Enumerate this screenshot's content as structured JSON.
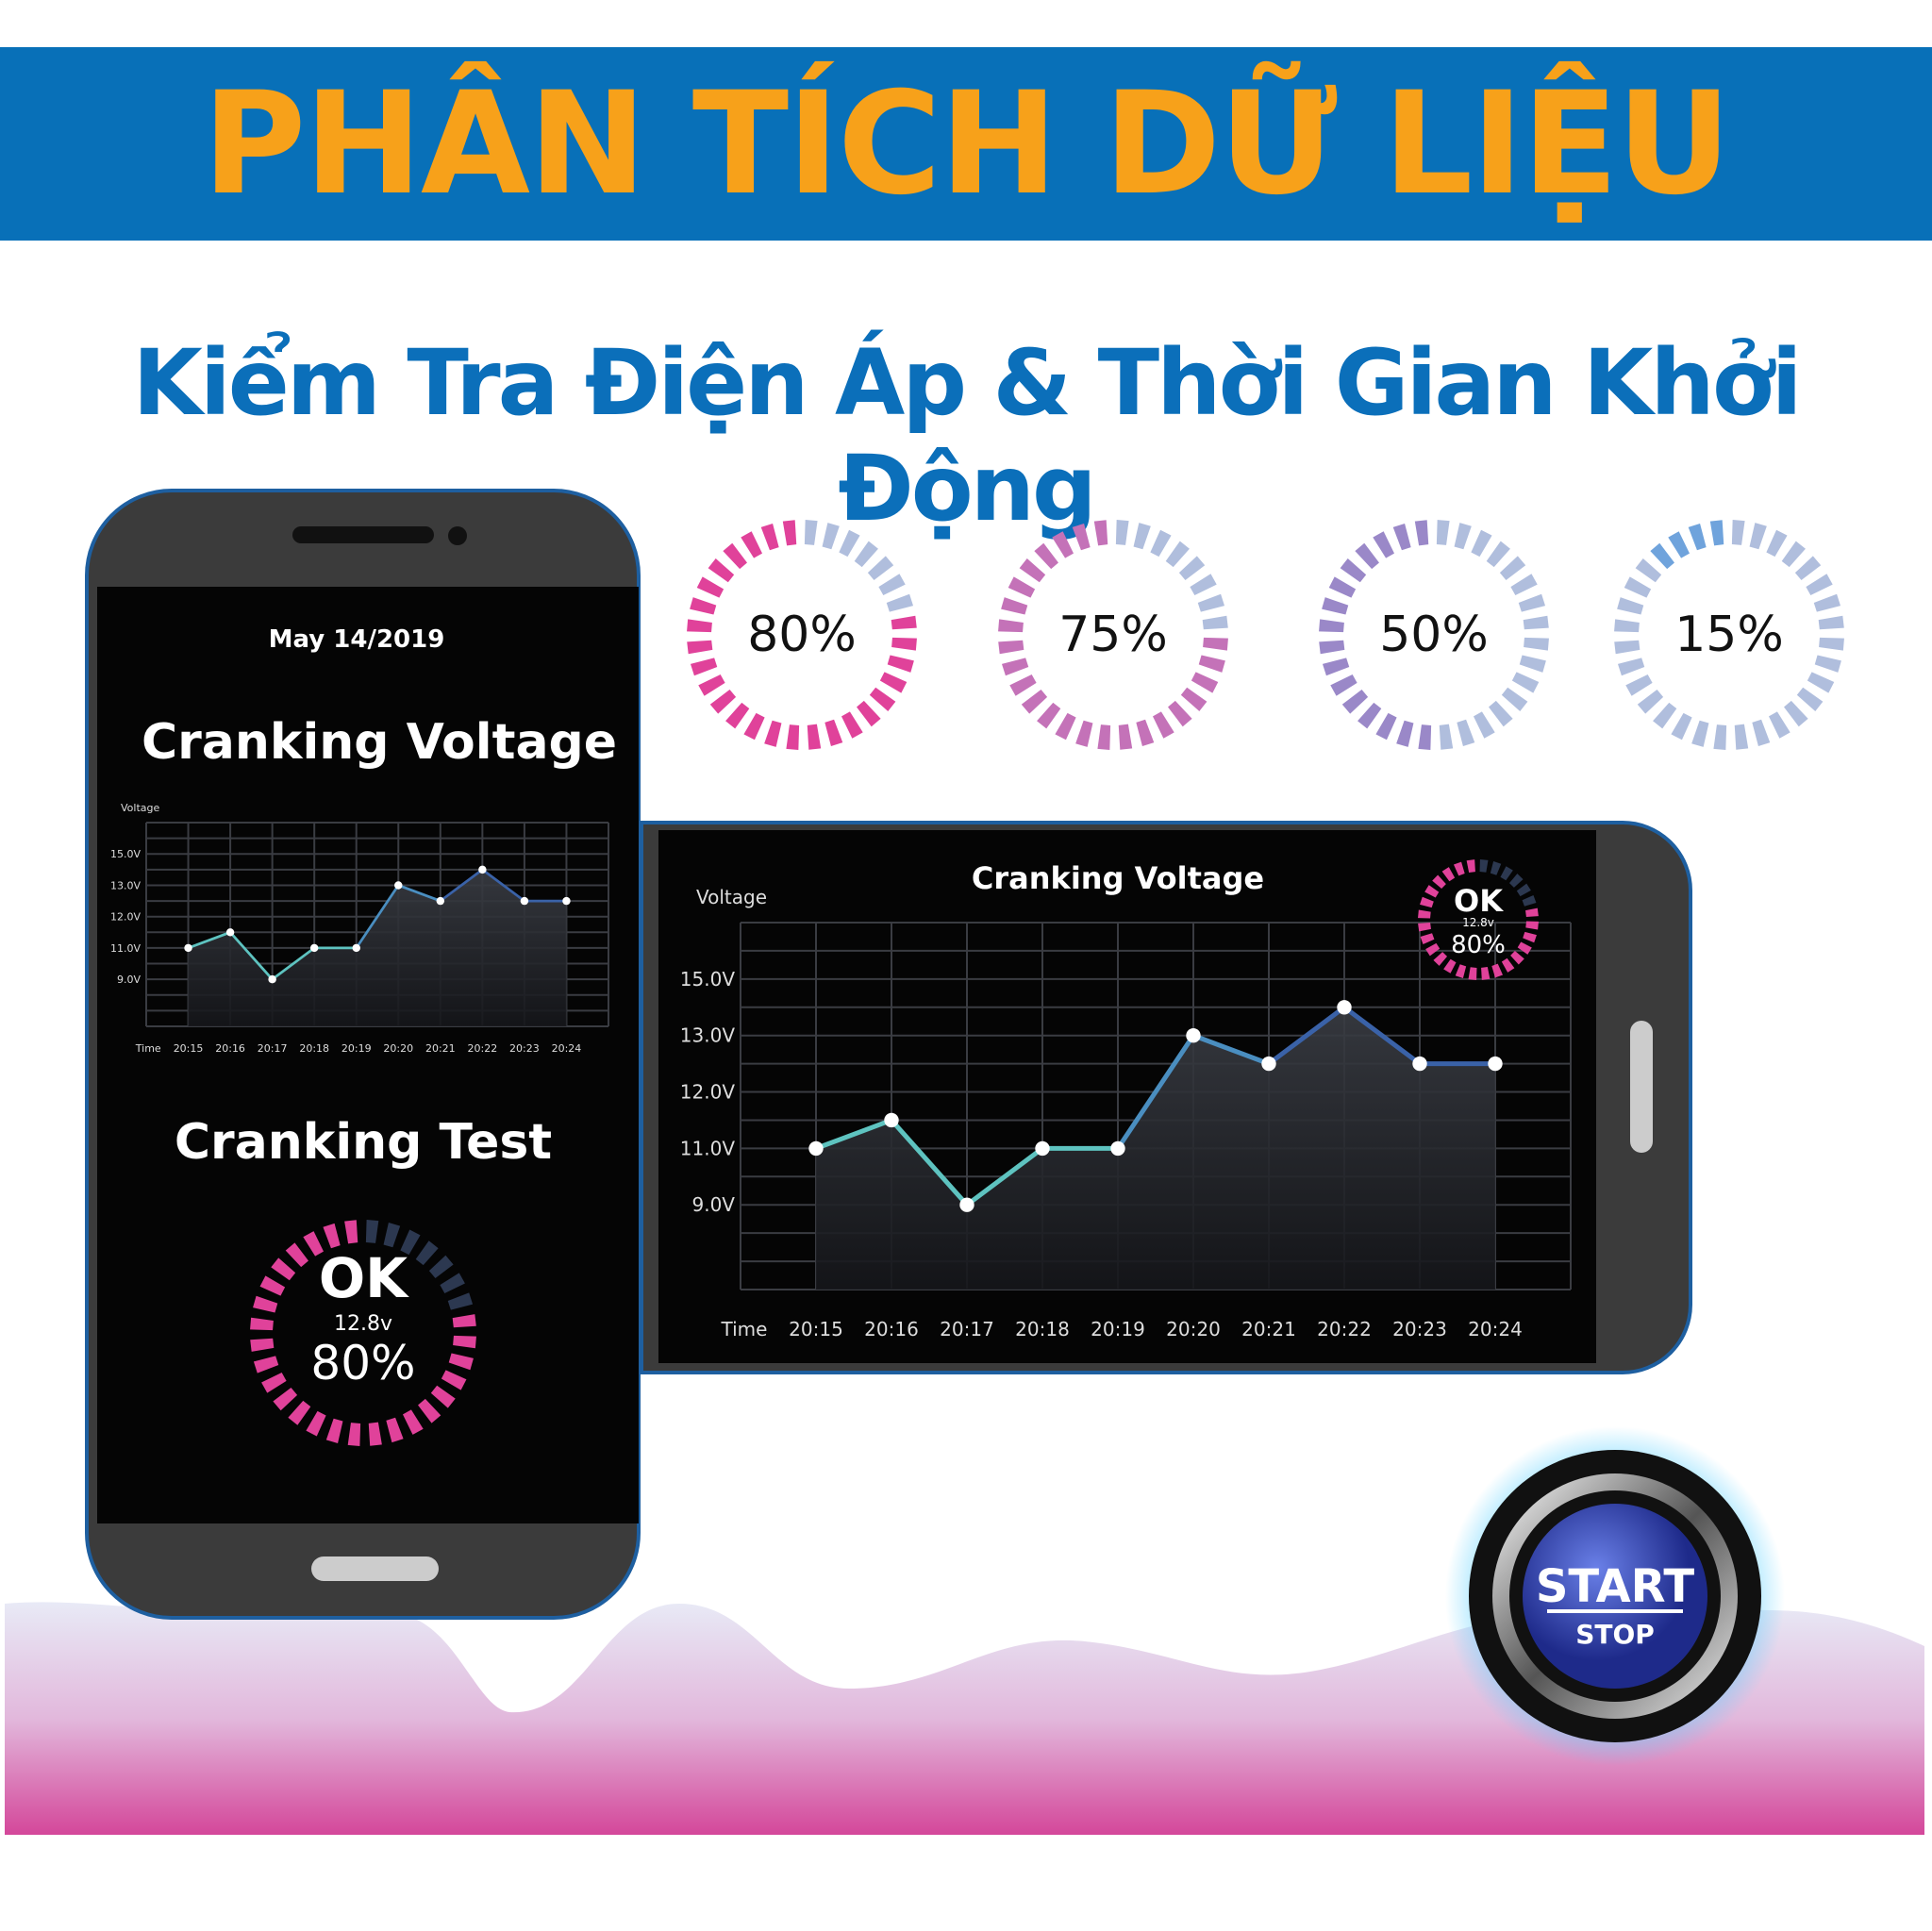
{
  "banner": {
    "title": "PHÂN TÍCH DỮ LIỆU"
  },
  "subtitle": "Kiểm Tra Điện Áp & Thời Gian Khởi Động",
  "colors": {
    "banner_bg": "#0870b8",
    "banner_text": "#f7a11a",
    "subtitle": "#0b6fba",
    "gauge_pink": "#e0429a",
    "gauge_unfilled": "#b0bedd"
  },
  "gauges": [
    {
      "label": "80%",
      "value": 0.8,
      "color": "#e0429a"
    },
    {
      "label": "75%",
      "value": 0.75,
      "color": "#c472b8"
    },
    {
      "label": "50%",
      "value": 0.5,
      "color": "#9a88c8"
    },
    {
      "label": "15%",
      "value": 0.15,
      "color": "#6fa3dc"
    }
  ],
  "portrait_phone": {
    "date": "May 14/2019",
    "chart_title": "Cranking Voltage",
    "test_title": "Cranking Test",
    "test_status": "OK",
    "test_voltage": "12.8v",
    "test_percent": "80%",
    "test_value": 0.8
  },
  "landscape_phone": {
    "chart_title": "Cranking Voltage",
    "status": "OK",
    "voltage": "12.8v",
    "percent": "80%",
    "value": 0.8
  },
  "start_button": {
    "line1": "START",
    "line2": "STOP"
  },
  "chart_data": {
    "type": "area",
    "title": "Cranking Voltage",
    "ylabel": "Voltage",
    "xlabel": "Time",
    "categories": [
      "20:15",
      "20:16",
      "20:17",
      "20:18",
      "20:19",
      "20:20",
      "20:21",
      "20:22",
      "20:23",
      "20:24"
    ],
    "values": [
      11,
      11.5,
      9,
      11,
      11,
      13,
      12.5,
      14,
      12.5,
      12.5
    ],
    "y_ticks": [
      15.0,
      13.0,
      12.0,
      11.0,
      9.0
    ],
    "y_tick_labels": [
      "15.0V",
      "13.0V",
      "12.0V",
      "11.0V",
      "9.0V"
    ],
    "grid": true,
    "line_colors": [
      "#5ec3c0",
      "#3a62a8"
    ]
  }
}
